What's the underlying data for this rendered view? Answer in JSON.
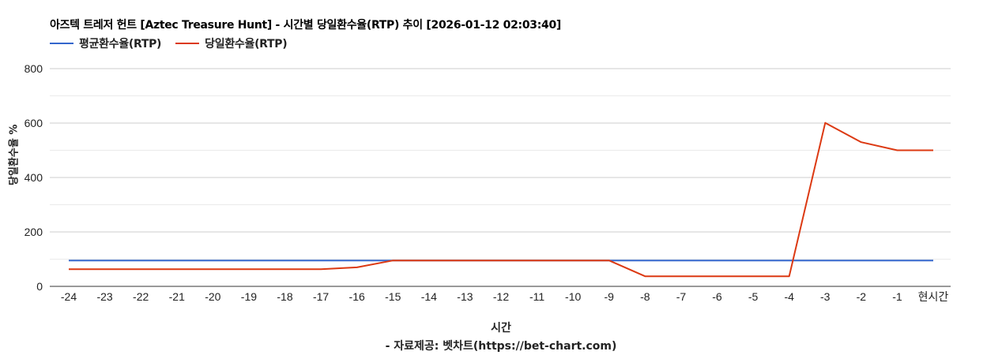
{
  "title": "아즈텍 트레저 헌트 [Aztec Treasure Hunt] - 시간별 당일환수율(RTP) 추이 [2026-01-12 02:03:40]",
  "legend": [
    {
      "label": "평균환수율(RTP)",
      "color": "#3366cc"
    },
    {
      "label": "당일환수율(RTP)",
      "color": "#dc3912"
    }
  ],
  "y_axis_title": "당일환수율 %",
  "x_axis_title": "시간",
  "source": "- 자료제공: 벳차트(https://bet-chart.com)",
  "colors": {
    "gridline_major": "#cccccc",
    "gridline_minor": "#ebebeb",
    "baseline": "#333333"
  },
  "chart_data": {
    "type": "line",
    "title": "아즈텍 트레저 헌트 [Aztec Treasure Hunt] - 시간별 당일환수율(RTP) 추이 [2026-01-12 02:03:40]",
    "xlabel": "시간",
    "ylabel": "당일환수율 %",
    "ylim": [
      0,
      800
    ],
    "yticks": [
      0,
      200,
      400,
      600,
      800
    ],
    "grid": true,
    "legend_position": "top",
    "categories": [
      "-24",
      "-23",
      "-22",
      "-21",
      "-20",
      "-19",
      "-18",
      "-17",
      "-16",
      "-15",
      "-14",
      "-13",
      "-12",
      "-11",
      "-10",
      "-9",
      "-8",
      "-7",
      "-6",
      "-5",
      "-4",
      "-3",
      "-2",
      "-1",
      "현시간"
    ],
    "series": [
      {
        "name": "평균환수율(RTP)",
        "color": "#3366cc",
        "values": [
          95,
          95,
          95,
          95,
          95,
          95,
          95,
          95,
          95,
          95,
          95,
          95,
          95,
          95,
          95,
          95,
          95,
          95,
          95,
          95,
          95,
          95,
          95,
          95,
          95
        ]
      },
      {
        "name": "당일환수율(RTP)",
        "color": "#dc3912",
        "values": [
          63,
          63,
          63,
          63,
          63,
          63,
          63,
          63,
          70,
          95,
          95,
          95,
          95,
          95,
          95,
          95,
          37,
          37,
          37,
          37,
          37,
          601,
          530,
          500,
          500
        ]
      }
    ]
  }
}
